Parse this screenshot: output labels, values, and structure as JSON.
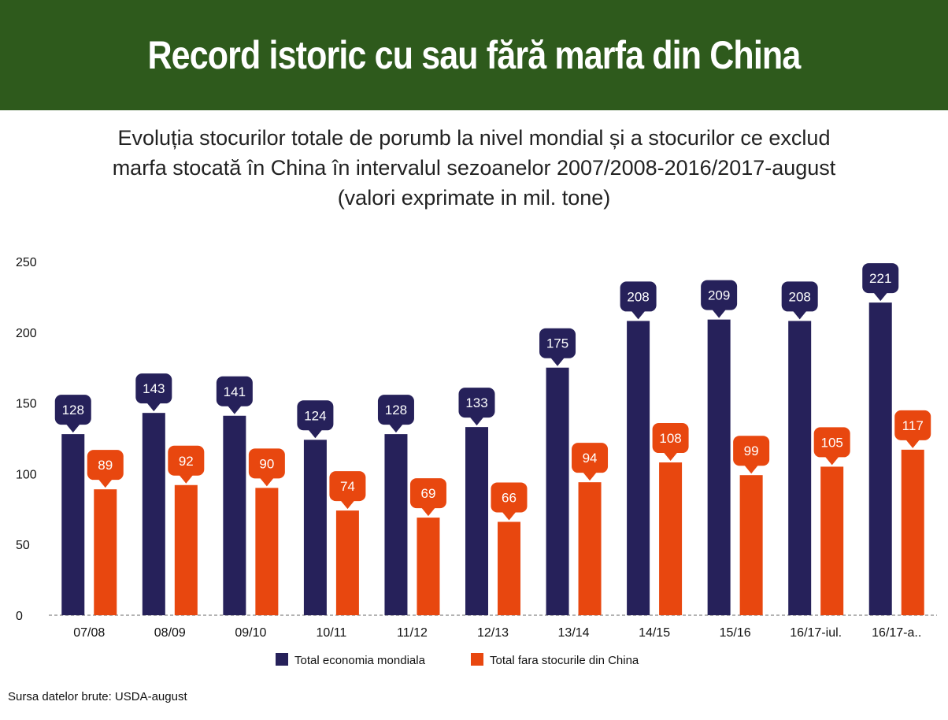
{
  "header": {
    "title": "Record istoric cu sau fără marfa din China"
  },
  "subtitle_lines": [
    "Evoluția stocurilor totale de porumb la nivel mondial și a stocurilor ce exclud",
    "marfa stocată în China în intervalul sezoanelor 2007/2008-2016/2017-august",
    "(valori exprimate in mil. tone)"
  ],
  "source": "Sursa datelor brute: USDA-august",
  "colors": {
    "banner": "#2e5a1c",
    "series_total": "#26215a",
    "series_excl_china": "#e8470f"
  },
  "chart_data": {
    "type": "bar",
    "categories": [
      "07/08",
      "08/09",
      "09/10",
      "10/11",
      "11/12",
      "12/13",
      "13/14",
      "14/15",
      "15/16",
      "16/17-iul.",
      "16/17-a.."
    ],
    "series": [
      {
        "name": "Total economia mondiala",
        "values": [
          128,
          143,
          141,
          124,
          128,
          133,
          175,
          208,
          209,
          208,
          221
        ]
      },
      {
        "name": "Total fara stocurile din China",
        "values": [
          89,
          92,
          90,
          74,
          69,
          66,
          94,
          108,
          99,
          105,
          117
        ]
      }
    ],
    "ylim": [
      0,
      250
    ],
    "yticks": [
      0,
      50,
      100,
      150,
      200,
      250
    ],
    "data_labels": true,
    "legend": "bottom",
    "grid": false
  }
}
